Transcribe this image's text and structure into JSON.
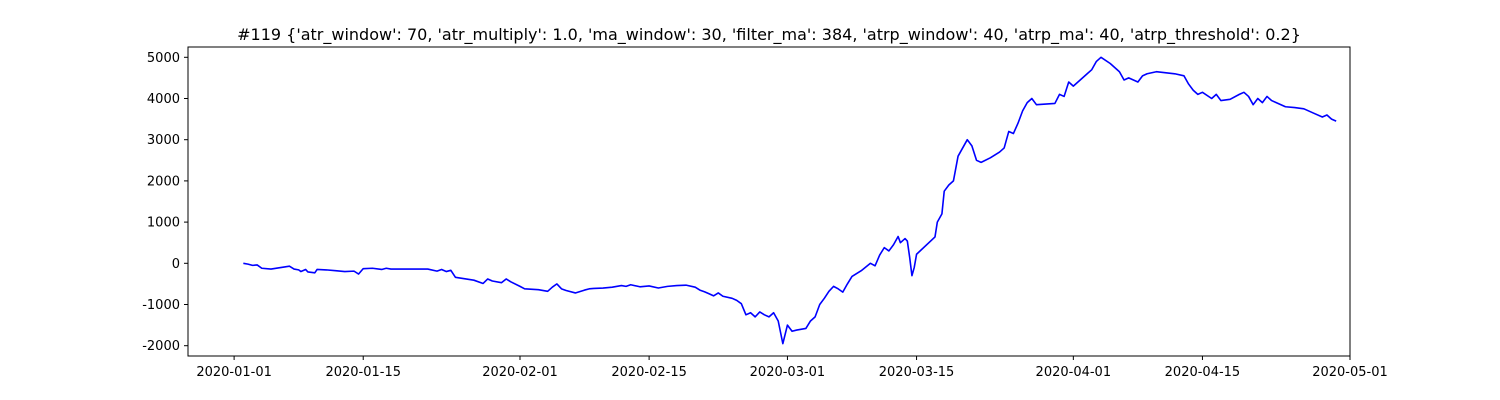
{
  "chart_data": {
    "type": "line",
    "title": "#119 {'atr_window': 70, 'atr_multiply': 1.0, 'ma_window': 30, 'filter_ma': 384, 'atrp_window': 40, 'atrp_ma': 40, 'atrp_threshold': 0.2}",
    "xlabel": "",
    "ylabel": "",
    "grid": false,
    "legend": "none",
    "x_axis": {
      "type": "date",
      "range": [
        "2019-12-27",
        "2020-05-01"
      ],
      "ticks": [
        "2020-01-01",
        "2020-01-15",
        "2020-02-01",
        "2020-02-15",
        "2020-03-01",
        "2020-03-15",
        "2020-04-01",
        "2020-04-15",
        "2020-05-01"
      ]
    },
    "y_axis": {
      "range": [
        -2250,
        5250
      ],
      "ticks": [
        -2000,
        -1000,
        0,
        1000,
        2000,
        3000,
        4000,
        5000
      ]
    },
    "series": [
      {
        "color": "#0000ff",
        "points": [
          [
            "2020-01-02",
            0
          ],
          [
            "2020-01-02T12:00",
            -20
          ],
          [
            "2020-01-03",
            -50
          ],
          [
            "2020-01-03T12:00",
            -40
          ],
          [
            "2020-01-04",
            -120
          ],
          [
            "2020-01-05",
            -140
          ],
          [
            "2020-01-07",
            -70
          ],
          [
            "2020-01-07T12:00",
            -140
          ],
          [
            "2020-01-08",
            -160
          ],
          [
            "2020-01-08T06:00",
            -200
          ],
          [
            "2020-01-08T18:00",
            -150
          ],
          [
            "2020-01-09",
            -210
          ],
          [
            "2020-01-09T18:00",
            -230
          ],
          [
            "2020-01-10",
            -150
          ],
          [
            "2020-01-11",
            -160
          ],
          [
            "2020-01-12",
            -180
          ],
          [
            "2020-01-13",
            -200
          ],
          [
            "2020-01-14",
            -190
          ],
          [
            "2020-01-14T12:00",
            -260
          ],
          [
            "2020-01-15",
            -130
          ],
          [
            "2020-01-16",
            -120
          ],
          [
            "2020-01-17",
            -150
          ],
          [
            "2020-01-17T12:00",
            -120
          ],
          [
            "2020-01-18",
            -140
          ],
          [
            "2020-01-20",
            -140
          ],
          [
            "2020-01-22",
            -140
          ],
          [
            "2020-01-23",
            -190
          ],
          [
            "2020-01-23T12:00",
            -150
          ],
          [
            "2020-01-24",
            -200
          ],
          [
            "2020-01-24T12:00",
            -170
          ],
          [
            "2020-01-25",
            -340
          ],
          [
            "2020-01-27",
            -410
          ],
          [
            "2020-01-28",
            -490
          ],
          [
            "2020-01-28T12:00",
            -380
          ],
          [
            "2020-01-29",
            -430
          ],
          [
            "2020-01-30",
            -470
          ],
          [
            "2020-01-30T12:00",
            -380
          ],
          [
            "2020-01-31",
            -450
          ],
          [
            "2020-02-01",
            -560
          ],
          [
            "2020-02-01T12:00",
            -620
          ],
          [
            "2020-02-03",
            -640
          ],
          [
            "2020-02-04",
            -680
          ],
          [
            "2020-02-04T12:00",
            -580
          ],
          [
            "2020-02-05",
            -500
          ],
          [
            "2020-02-05T12:00",
            -620
          ],
          [
            "2020-02-06",
            -660
          ],
          [
            "2020-02-07",
            -720
          ],
          [
            "2020-02-08",
            -650
          ],
          [
            "2020-02-08T12:00",
            -620
          ],
          [
            "2020-02-09",
            -610
          ],
          [
            "2020-02-10",
            -600
          ],
          [
            "2020-02-11",
            -580
          ],
          [
            "2020-02-12",
            -540
          ],
          [
            "2020-02-12T12:00",
            -560
          ],
          [
            "2020-02-13",
            -520
          ],
          [
            "2020-02-14",
            -570
          ],
          [
            "2020-02-15",
            -550
          ],
          [
            "2020-02-16",
            -600
          ],
          [
            "2020-02-17",
            -560
          ],
          [
            "2020-02-18",
            -540
          ],
          [
            "2020-02-19",
            -530
          ],
          [
            "2020-02-20",
            -580
          ],
          [
            "2020-02-20T12:00",
            -650
          ],
          [
            "2020-02-21",
            -690
          ],
          [
            "2020-02-21T12:00",
            -740
          ],
          [
            "2020-02-22",
            -790
          ],
          [
            "2020-02-22T12:00",
            -720
          ],
          [
            "2020-02-23",
            -800
          ],
          [
            "2020-02-24",
            -850
          ],
          [
            "2020-02-24T12:00",
            -900
          ],
          [
            "2020-02-25",
            -980
          ],
          [
            "2020-02-25T12:00",
            -1250
          ],
          [
            "2020-02-26",
            -1200
          ],
          [
            "2020-02-26T12:00",
            -1300
          ],
          [
            "2020-02-27",
            -1180
          ],
          [
            "2020-02-27T12:00",
            -1250
          ],
          [
            "2020-02-28",
            -1300
          ],
          [
            "2020-02-28T12:00",
            -1200
          ],
          [
            "2020-02-29",
            -1400
          ],
          [
            "2020-02-29T12:00",
            -1950
          ],
          [
            "2020-03-01",
            -1500
          ],
          [
            "2020-03-01T12:00",
            -1650
          ],
          [
            "2020-03-02",
            -1620
          ],
          [
            "2020-03-03",
            -1580
          ],
          [
            "2020-03-03T12:00",
            -1400
          ],
          [
            "2020-03-04",
            -1300
          ],
          [
            "2020-03-04T12:00",
            -1000
          ],
          [
            "2020-03-05",
            -850
          ],
          [
            "2020-03-05T12:00",
            -680
          ],
          [
            "2020-03-06",
            -560
          ],
          [
            "2020-03-06T12:00",
            -620
          ],
          [
            "2020-03-07",
            -700
          ],
          [
            "2020-03-07T12:00",
            -500
          ],
          [
            "2020-03-08",
            -320
          ],
          [
            "2020-03-09",
            -180
          ],
          [
            "2020-03-10",
            0
          ],
          [
            "2020-03-10T12:00",
            -60
          ],
          [
            "2020-03-11",
            200
          ],
          [
            "2020-03-11T12:00",
            380
          ],
          [
            "2020-03-12",
            300
          ],
          [
            "2020-03-12T12:00",
            450
          ],
          [
            "2020-03-13",
            650
          ],
          [
            "2020-03-13T06:00",
            500
          ],
          [
            "2020-03-13T18:00",
            600
          ],
          [
            "2020-03-14",
            540
          ],
          [
            "2020-03-14T06:00",
            150
          ],
          [
            "2020-03-14T12:00",
            -300
          ],
          [
            "2020-03-14T18:00",
            -100
          ],
          [
            "2020-03-15",
            220
          ],
          [
            "2020-03-17",
            640
          ],
          [
            "2020-03-17T06:00",
            1000
          ],
          [
            "2020-03-17T18:00",
            1200
          ],
          [
            "2020-03-18",
            1750
          ],
          [
            "2020-03-18T12:00",
            1900
          ],
          [
            "2020-03-19",
            2000
          ],
          [
            "2020-03-19T12:00",
            2600
          ],
          [
            "2020-03-20",
            2800
          ],
          [
            "2020-03-20T12:00",
            3000
          ],
          [
            "2020-03-21",
            2850
          ],
          [
            "2020-03-21T12:00",
            2500
          ],
          [
            "2020-03-22",
            2450
          ],
          [
            "2020-03-23",
            2560
          ],
          [
            "2020-03-24",
            2700
          ],
          [
            "2020-03-24T12:00",
            2800
          ],
          [
            "2020-03-25",
            3200
          ],
          [
            "2020-03-25T12:00",
            3150
          ],
          [
            "2020-03-26",
            3400
          ],
          [
            "2020-03-26T12:00",
            3700
          ],
          [
            "2020-03-27",
            3900
          ],
          [
            "2020-03-27T12:00",
            4000
          ],
          [
            "2020-03-28",
            3850
          ],
          [
            "2020-03-30",
            3880
          ],
          [
            "2020-03-30T12:00",
            4100
          ],
          [
            "2020-03-31",
            4050
          ],
          [
            "2020-03-31T12:00",
            4400
          ],
          [
            "2020-04-01",
            4300
          ],
          [
            "2020-04-02",
            4500
          ],
          [
            "2020-04-02T12:00",
            4600
          ],
          [
            "2020-04-03",
            4700
          ],
          [
            "2020-04-03T12:00",
            4900
          ],
          [
            "2020-04-04",
            5000
          ],
          [
            "2020-04-05",
            4850
          ],
          [
            "2020-04-06",
            4650
          ],
          [
            "2020-04-06T12:00",
            4450
          ],
          [
            "2020-04-07",
            4500
          ],
          [
            "2020-04-08",
            4400
          ],
          [
            "2020-04-08T12:00",
            4550
          ],
          [
            "2020-04-09",
            4600
          ],
          [
            "2020-04-10",
            4650
          ],
          [
            "2020-04-12",
            4600
          ],
          [
            "2020-04-13",
            4550
          ],
          [
            "2020-04-13T12:00",
            4350
          ],
          [
            "2020-04-14",
            4200
          ],
          [
            "2020-04-14T12:00",
            4100
          ],
          [
            "2020-04-15",
            4150
          ],
          [
            "2020-04-16",
            4000
          ],
          [
            "2020-04-16T12:00",
            4100
          ],
          [
            "2020-04-17",
            3950
          ],
          [
            "2020-04-18",
            3980
          ],
          [
            "2020-04-19",
            4100
          ],
          [
            "2020-04-19T12:00",
            4150
          ],
          [
            "2020-04-20",
            4050
          ],
          [
            "2020-04-20T12:00",
            3850
          ],
          [
            "2020-04-21",
            4000
          ],
          [
            "2020-04-21T12:00",
            3900
          ],
          [
            "2020-04-22",
            4050
          ],
          [
            "2020-04-22T12:00",
            3950
          ],
          [
            "2020-04-23",
            3900
          ],
          [
            "2020-04-24",
            3800
          ],
          [
            "2020-04-25",
            3780
          ],
          [
            "2020-04-26",
            3750
          ],
          [
            "2020-04-27",
            3650
          ],
          [
            "2020-04-28",
            3550
          ],
          [
            "2020-04-28T12:00",
            3600
          ],
          [
            "2020-04-29",
            3500
          ],
          [
            "2020-04-29T12:00",
            3450
          ]
        ]
      }
    ]
  }
}
